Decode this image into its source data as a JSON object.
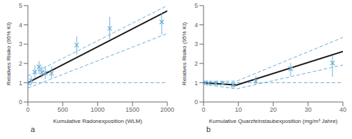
{
  "chart_data": [
    {
      "type": "line",
      "xlabel": "Kumulative Radonexposition (WLM)",
      "ylabel": "Relatives Risiko (95% KI)",
      "annotations": [
        "a"
      ],
      "xlim": [
        0,
        2000
      ],
      "ylim": [
        0,
        5
      ],
      "xticks": [
        0,
        500,
        1000,
        1500,
        2000
      ],
      "yticks": [
        0,
        1,
        2,
        3,
        4,
        5
      ],
      "grid": false,
      "reference_line": {
        "y": 1.0,
        "color": "#6aaed6",
        "line_style": "dashed"
      },
      "series": [
        {
          "type": "line",
          "color": "#6aaed6",
          "line_style": "dashed",
          "x": [
            0,
            2000
          ],
          "values": [
            1.35,
            5.0
          ]
        },
        {
          "type": "line",
          "color": "#6aaed6",
          "line_style": "dashed",
          "x": [
            0,
            2000
          ],
          "values": [
            0.72,
            3.55
          ]
        },
        {
          "type": "line",
          "color": "#1a1a1a",
          "line_style": "solid",
          "x": [
            0,
            2000
          ],
          "values": [
            1.0,
            4.72
          ]
        },
        {
          "type": "scatter",
          "color": "#6aaed6",
          "marker": "x",
          "x": [
            10,
            50,
            100,
            160,
            200,
            250,
            340,
            700,
            1175,
            1920
          ],
          "values": [
            0.97,
            1.1,
            1.55,
            1.82,
            1.55,
            1.5,
            1.48,
            2.95,
            3.82,
            4.15
          ],
          "error_low": [
            0.08,
            0.2,
            0.3,
            0.35,
            0.3,
            0.3,
            0.28,
            0.5,
            0.55,
            0.65
          ],
          "error_high": [
            0.08,
            0.25,
            0.35,
            0.3,
            0.3,
            0.35,
            0.38,
            0.45,
            0.6,
            0.45
          ]
        }
      ]
    },
    {
      "type": "line",
      "xlabel": "Kumulative Quarzfeinstaubexposition (mg/m³ Jahre)",
      "ylabel": "Relatives Risiko (95% KI)",
      "annotations": [
        "b"
      ],
      "xlim": [
        0,
        40
      ],
      "ylim": [
        0,
        5
      ],
      "xticks": [
        0,
        10,
        20,
        30,
        40
      ],
      "yticks": [
        0,
        1,
        2,
        3,
        4,
        5
      ],
      "grid": false,
      "reference_line": {
        "y": 1.0,
        "color": "#6aaed6",
        "line_style": "dashed"
      },
      "series": [
        {
          "type": "line",
          "color": "#6aaed6",
          "line_style": "dashed",
          "x": [
            0,
            9.5,
            40
          ],
          "values": [
            1.08,
            1.08,
            3.35
          ]
        },
        {
          "type": "line",
          "color": "#6aaed6",
          "line_style": "dashed",
          "x": [
            0,
            9.5,
            40
          ],
          "values": [
            0.92,
            0.68,
            1.92
          ]
        },
        {
          "type": "line",
          "color": "#1a1a1a",
          "line_style": "solid",
          "x": [
            0,
            9.5,
            40
          ],
          "values": [
            1.0,
            0.88,
            2.62
          ]
        },
        {
          "type": "scatter",
          "color": "#6aaed6",
          "marker": "x",
          "x": [
            0.5,
            1.5,
            3.5,
            5.5,
            8.5,
            15.0,
            25.0,
            37.0
          ],
          "values": [
            1.0,
            0.97,
            0.97,
            0.97,
            0.88,
            1.08,
            1.72,
            2.02
          ],
          "error_low": [
            0.06,
            0.08,
            0.1,
            0.1,
            0.15,
            0.18,
            0.38,
            0.72
          ],
          "error_high": [
            0.06,
            0.08,
            0.1,
            0.1,
            0.15,
            0.28,
            0.3,
            0.38
          ]
        }
      ]
    }
  ]
}
